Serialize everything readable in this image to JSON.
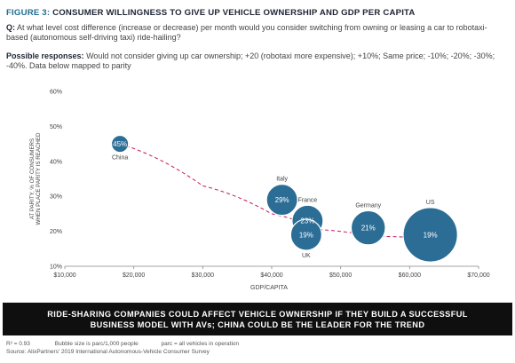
{
  "figure": {
    "label": "FIGURE 3:",
    "title": "CONSUMER WILLINGNESS TO GIVE UP VEHICLE OWNERSHIP AND GDP PER CAPITA"
  },
  "question": {
    "prefix": "Q:",
    "text": "At what level cost difference (increase or decrease) per month would you consider switching from owning or leasing a car to robotaxi-based (autonomous self-driving taxi) ride-hailing?"
  },
  "responses": {
    "prefix": "Possible responses:",
    "text": "Would not consider giving up car ownership; +20 (robotaxi more expensive); +10%; Same price; -10%; -20%; -30%; -40%. Data below mapped to parity"
  },
  "chart_data": {
    "type": "scatter",
    "xlabel": "GDP/CAPITA",
    "ylabel_lines": [
      "AT PARITY, % OF CONSUMERS",
      "WHEN PLACE PARITY IS REACHED"
    ],
    "xlim": [
      10000,
      70000
    ],
    "ylim": [
      10,
      60
    ],
    "x_ticks": [
      10000,
      20000,
      30000,
      40000,
      50000,
      60000,
      70000
    ],
    "x_tick_labels": [
      "$10,000",
      "$20,000",
      "$30,000",
      "$40,000",
      "$50,000",
      "$60,000",
      "$70,000"
    ],
    "y_ticks": [
      10,
      20,
      30,
      40,
      50,
      60
    ],
    "y_tick_labels": [
      "10%",
      "20%",
      "30%",
      "40%",
      "50%",
      "60%"
    ],
    "grid": false,
    "bubble_color": "#2b6d95",
    "trend_color": "#c2185b",
    "points": [
      {
        "country": "China",
        "x": 18000,
        "y": 45,
        "label": "45%",
        "bubble_size": 0.55,
        "name_pos": "below"
      },
      {
        "country": "Italy",
        "x": 41500,
        "y": 29,
        "label": "29%",
        "bubble_size": 1.0,
        "name_pos": "above"
      },
      {
        "country": "France",
        "x": 45200,
        "y": 23,
        "label": "23%",
        "bubble_size": 1.0,
        "name_pos": "above"
      },
      {
        "country": "UK",
        "x": 45000,
        "y": 19,
        "label": "19%",
        "bubble_size": 1.0,
        "name_pos": "below"
      },
      {
        "country": "Germany",
        "x": 54000,
        "y": 21,
        "label": "21%",
        "bubble_size": 1.1,
        "name_pos": "above"
      },
      {
        "country": "US",
        "x": 63000,
        "y": 19,
        "label": "19%",
        "bubble_size": 1.75,
        "name_pos": "above"
      }
    ],
    "trendline": [
      [
        18000,
        45
      ],
      [
        30000,
        33
      ],
      [
        40000,
        25
      ],
      [
        47000,
        20.5
      ],
      [
        55000,
        18.6
      ],
      [
        63000,
        18
      ]
    ]
  },
  "banner": {
    "text": "RIDE-SHARING COMPANIES COULD AFFECT VEHICLE OWNERSHIP IF THEY BUILD A SUCCESSFUL BUSINESS MODEL WITH AVs; CHINA COULD BE THE LEADER FOR THE TREND"
  },
  "footnotes": {
    "r2": "R² = 0.93",
    "bubble": "Bubble size is parc/1,000 people",
    "parc": "parc = all vehicles in operation",
    "source": "Source: AlixPartners' 2019 International Autonomous-Vehicle Consumer Survey"
  }
}
